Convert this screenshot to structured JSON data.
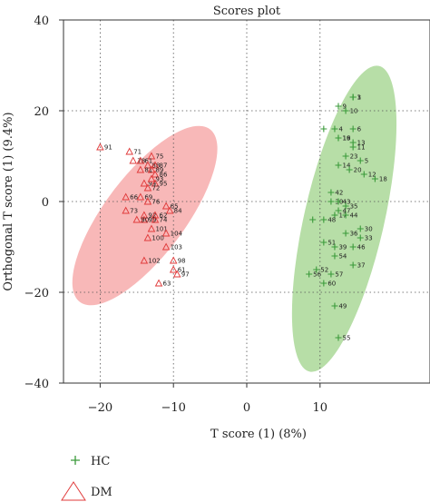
{
  "chart_data": {
    "type": "scatter",
    "title": "Scores plot",
    "xlabel": "T score (1) (8%)",
    "ylabel": "Orthogonal T score (1) (9.4%)",
    "xlim": [
      -25,
      25
    ],
    "ylim": [
      -40,
      40
    ],
    "xticks": [
      -20,
      -10,
      0,
      10
    ],
    "yticks": [
      -40,
      -20,
      0,
      20,
      40
    ],
    "grid": "dotted",
    "ellipse_colors": {
      "HC": "#9fd38a",
      "DM": "#f5a0a0"
    },
    "series": [
      {
        "name": "HC",
        "marker": "plus",
        "color": "#3a9a3a",
        "points": [
          {
            "x": 14.5,
            "y": 23,
            "label": "3"
          },
          {
            "x": 14.5,
            "y": 23,
            "label": "1"
          },
          {
            "x": 12.5,
            "y": 21,
            "label": "9"
          },
          {
            "x": 13.5,
            "y": 20,
            "label": "10"
          },
          {
            "x": 12,
            "y": 16,
            "label": "4"
          },
          {
            "x": 14.5,
            "y": 16,
            "label": "6"
          },
          {
            "x": 10.5,
            "y": 16,
            "label": ""
          },
          {
            "x": 12.5,
            "y": 14,
            "label": "16"
          },
          {
            "x": 12.5,
            "y": 14,
            "label": "19"
          },
          {
            "x": 14.5,
            "y": 13,
            "label": "13"
          },
          {
            "x": 14.5,
            "y": 12,
            "label": "11"
          },
          {
            "x": 13.5,
            "y": 10,
            "label": "23"
          },
          {
            "x": 12.5,
            "y": 8,
            "label": "14"
          },
          {
            "x": 15.5,
            "y": 9,
            "label": "5"
          },
          {
            "x": 14,
            "y": 7,
            "label": "20"
          },
          {
            "x": 16,
            "y": 6,
            "label": "12"
          },
          {
            "x": 17.5,
            "y": 5,
            "label": "18"
          },
          {
            "x": 11.5,
            "y": 2,
            "label": "42"
          },
          {
            "x": 11.5,
            "y": 0,
            "label": "30"
          },
          {
            "x": 12.5,
            "y": 0,
            "label": "43"
          },
          {
            "x": 13.5,
            "y": -1,
            "label": "35"
          },
          {
            "x": 12.5,
            "y": -2,
            "label": "47"
          },
          {
            "x": 12,
            "y": -3,
            "label": "17"
          },
          {
            "x": 13.5,
            "y": -3,
            "label": "44"
          },
          {
            "x": 10.5,
            "y": -4,
            "label": "48"
          },
          {
            "x": 9,
            "y": -4,
            "label": ""
          },
          {
            "x": 15.5,
            "y": -6,
            "label": "30"
          },
          {
            "x": 13.5,
            "y": -7,
            "label": "36"
          },
          {
            "x": 15.5,
            "y": -8,
            "label": "33"
          },
          {
            "x": 10.5,
            "y": -9,
            "label": "51"
          },
          {
            "x": 14.5,
            "y": -10,
            "label": "46"
          },
          {
            "x": 12,
            "y": -10,
            "label": "39"
          },
          {
            "x": 12,
            "y": -12,
            "label": "54"
          },
          {
            "x": 11.5,
            "y": -16,
            "label": "57"
          },
          {
            "x": 14.5,
            "y": -14,
            "label": "37"
          },
          {
            "x": 9.5,
            "y": -15,
            "label": "52"
          },
          {
            "x": 8.5,
            "y": -16,
            "label": "56"
          },
          {
            "x": 10.5,
            "y": -18,
            "label": "60"
          },
          {
            "x": 12,
            "y": -23,
            "label": "49"
          },
          {
            "x": 12.5,
            "y": -30,
            "label": "55"
          }
        ]
      },
      {
        "name": "DM",
        "marker": "triangle",
        "color": "#e03a3a",
        "points": [
          {
            "x": -20,
            "y": 12,
            "label": "91"
          },
          {
            "x": -16,
            "y": 11,
            "label": "71"
          },
          {
            "x": -13,
            "y": 10,
            "label": "75"
          },
          {
            "x": -15.5,
            "y": 9,
            "label": "78"
          },
          {
            "x": -14.5,
            "y": 9,
            "label": "61"
          },
          {
            "x": -13.5,
            "y": 8,
            "label": "88"
          },
          {
            "x": -12.5,
            "y": 8,
            "label": "87"
          },
          {
            "x": -14.5,
            "y": 7,
            "label": "81"
          },
          {
            "x": -13,
            "y": 7,
            "label": "89"
          },
          {
            "x": -12.5,
            "y": 6,
            "label": "86"
          },
          {
            "x": -14,
            "y": 4,
            "label": "94"
          },
          {
            "x": -13,
            "y": 5,
            "label": "93"
          },
          {
            "x": -12.5,
            "y": 4,
            "label": "95"
          },
          {
            "x": -13.5,
            "y": 3,
            "label": "72"
          },
          {
            "x": -16.5,
            "y": 1,
            "label": "66"
          },
          {
            "x": -14.5,
            "y": 1,
            "label": "69"
          },
          {
            "x": -13.5,
            "y": 0,
            "label": "76"
          },
          {
            "x": -11,
            "y": -1,
            "label": "65"
          },
          {
            "x": -10.5,
            "y": -2,
            "label": "84"
          },
          {
            "x": -16.5,
            "y": -2,
            "label": "73"
          },
          {
            "x": -14,
            "y": -3,
            "label": "92"
          },
          {
            "x": -12.5,
            "y": -3,
            "label": "62"
          },
          {
            "x": -14,
            "y": -4,
            "label": "99"
          },
          {
            "x": -12.5,
            "y": -4,
            "label": "74"
          },
          {
            "x": -15,
            "y": -4,
            "label": "90"
          },
          {
            "x": -13,
            "y": -6,
            "label": "101"
          },
          {
            "x": -11,
            "y": -7,
            "label": "104"
          },
          {
            "x": -13.5,
            "y": -8,
            "label": "100"
          },
          {
            "x": -11,
            "y": -10,
            "label": "103"
          },
          {
            "x": -14,
            "y": -13,
            "label": "102"
          },
          {
            "x": -10,
            "y": -13,
            "label": "98"
          },
          {
            "x": -10,
            "y": -15,
            "label": "61"
          },
          {
            "x": -9.5,
            "y": -16,
            "label": "97"
          },
          {
            "x": -12,
            "y": -18,
            "label": "63"
          }
        ]
      }
    ],
    "ellipses": [
      {
        "series": "HC",
        "cx": 13.3,
        "cy": -3.8,
        "rx": 34,
        "ry": 5.5,
        "angle_deg": 82
      },
      {
        "series": "DM",
        "cx": -13.9,
        "cy": -3.1,
        "rx": 21,
        "ry": 5.8,
        "angle_deg": 65
      }
    ]
  },
  "legend": [
    {
      "name": "HC",
      "label": "HC"
    },
    {
      "name": "DM",
      "label": "DM"
    }
  ]
}
